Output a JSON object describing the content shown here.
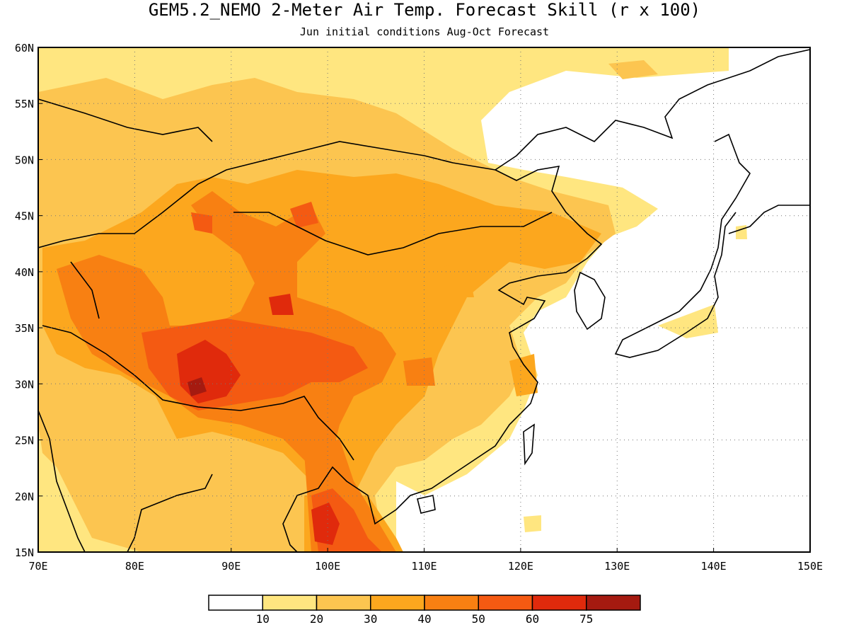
{
  "header": {
    "title": "GEM5.2_NEMO 2-Meter Air Temp. Forecast Skill (r x 100)",
    "subtitle": "Jun initial conditions  Aug-Oct Forecast"
  },
  "map": {
    "lon_range": [
      70,
      150
    ],
    "lat_range": [
      15,
      60
    ],
    "x_ticks": [
      "70E",
      "80E",
      "90E",
      "100E",
      "110E",
      "120E",
      "130E",
      "140E",
      "150E"
    ],
    "y_ticks": [
      "15N",
      "20N",
      "25N",
      "30N",
      "35N",
      "40N",
      "45N",
      "50N",
      "55N",
      "60N"
    ],
    "grid": "dotted",
    "fill_colors": {
      "10-20": "#ffe680",
      "20-30": "#fcc550",
      "30-40": "#fca71e",
      "40-50": "#f88012",
      "50-60": "#f45a12",
      "60-75": "#e02a0c",
      "75+": "#a51a10"
    }
  },
  "colorbar": {
    "colors": [
      "#ffffff",
      "#ffe680",
      "#fcc550",
      "#fca71e",
      "#f88012",
      "#f45a12",
      "#e02a0c",
      "#a51a10"
    ],
    "labels": [
      "10",
      "20",
      "30",
      "40",
      "50",
      "60",
      "75"
    ]
  }
}
